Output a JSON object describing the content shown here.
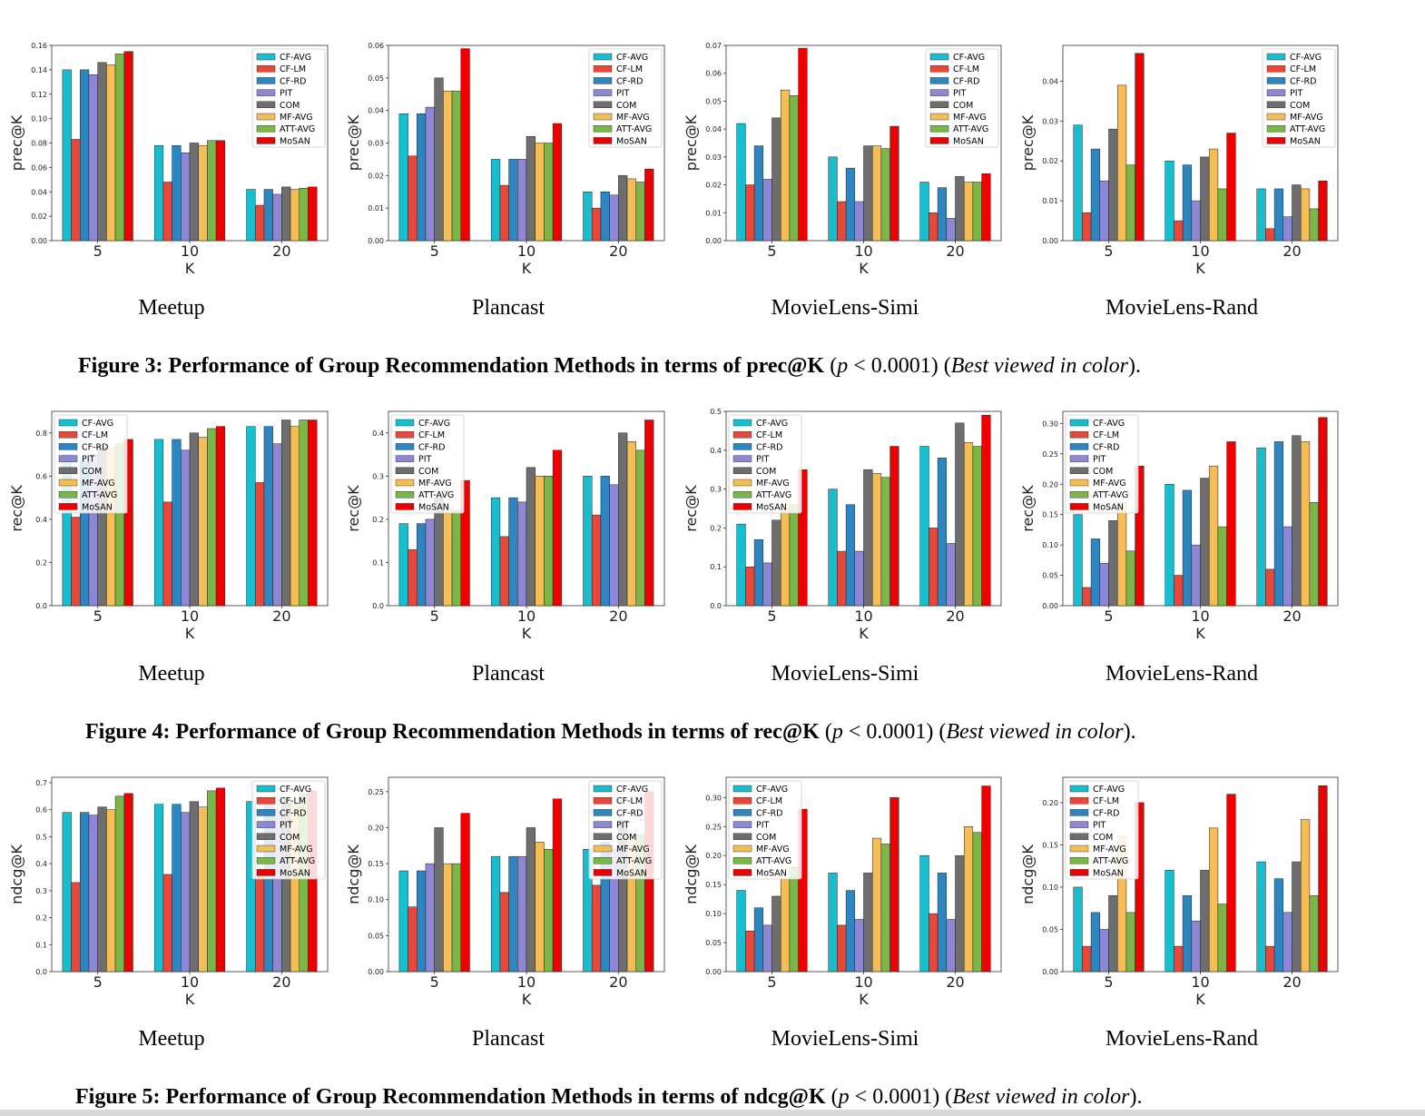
{
  "methods": [
    "CF-AVG",
    "CF-LM",
    "CF-RD",
    "PIT",
    "COM",
    "MF-AVG",
    "ATT-AVG",
    "MoSAN"
  ],
  "colors": [
    "#17becf",
    "#e8483a",
    "#2e86c1",
    "#8e87d6",
    "#6e6e6e",
    "#f5bd55",
    "#7ab648",
    "#ee0000"
  ],
  "figures": [
    {
      "caption": {
        "pre": "Figure 3: Performance of Group Recommendation Methods in terms of prec@K",
        "p_open": " (",
        "p": "p",
        "p_rest": " < 0.0001) (",
        "best": "Best viewed in color",
        "close": ")."
      },
      "panels": [
        {
          "subtitle": "Meetup",
          "chart_data": {
            "type": "bar",
            "title": "Meetup",
            "xlabel": "K",
            "ylabel": "prec@K",
            "categories": [
              "5",
              "10",
              "20"
            ],
            "ylim": [
              0,
              0.16
            ],
            "yticks": [
              0.0,
              0.02,
              0.04,
              0.06,
              0.08,
              0.1,
              0.12,
              0.14,
              0.16
            ],
            "ytick_labels": [
              "0.00",
              "0.02",
              "0.04",
              "0.06",
              "0.08",
              "0.10",
              "0.12",
              "0.14",
              "0.16"
            ],
            "legend": "top-right",
            "values": [
              [
                0.14,
                0.083,
                0.14,
                0.136,
                0.146,
                0.144,
                0.153,
                0.155
              ],
              [
                0.078,
                0.048,
                0.078,
                0.072,
                0.08,
                0.078,
                0.082,
                0.082
              ],
              [
                0.042,
                0.029,
                0.042,
                0.038,
                0.044,
                0.042,
                0.043,
                0.044
              ]
            ]
          }
        },
        {
          "subtitle": "Plancast",
          "chart_data": {
            "type": "bar",
            "title": "Plancast",
            "xlabel": "K",
            "ylabel": "prec@K",
            "categories": [
              "5",
              "10",
              "20"
            ],
            "ylim": [
              0,
              0.06
            ],
            "yticks": [
              0.0,
              0.01,
              0.02,
              0.03,
              0.04,
              0.05,
              0.06
            ],
            "ytick_labels": [
              "0.00",
              "0.01",
              "0.02",
              "0.03",
              "0.04",
              "0.05",
              "0.06"
            ],
            "legend": "top-right",
            "values": [
              [
                0.039,
                0.026,
                0.039,
                0.041,
                0.05,
                0.046,
                0.046,
                0.059
              ],
              [
                0.025,
                0.017,
                0.025,
                0.025,
                0.032,
                0.03,
                0.03,
                0.036
              ],
              [
                0.015,
                0.01,
                0.015,
                0.014,
                0.02,
                0.019,
                0.018,
                0.022
              ]
            ]
          }
        },
        {
          "subtitle": "MovieLens-Simi",
          "chart_data": {
            "type": "bar",
            "title": "MovieLens-Simi",
            "xlabel": "K",
            "ylabel": "prec@K",
            "categories": [
              "5",
              "10",
              "20"
            ],
            "ylim": [
              0,
              0.07
            ],
            "yticks": [
              0.0,
              0.01,
              0.02,
              0.03,
              0.04,
              0.05,
              0.06,
              0.07
            ],
            "ytick_labels": [
              "0.00",
              "0.01",
              "0.02",
              "0.03",
              "0.04",
              "0.05",
              "0.06",
              "0.07"
            ],
            "legend": "top-right",
            "values": [
              [
                0.042,
                0.02,
                0.034,
                0.022,
                0.044,
                0.054,
                0.052,
                0.069
              ],
              [
                0.03,
                0.014,
                0.026,
                0.014,
                0.034,
                0.034,
                0.033,
                0.041
              ],
              [
                0.021,
                0.01,
                0.019,
                0.008,
                0.023,
                0.021,
                0.021,
                0.024
              ]
            ]
          }
        },
        {
          "subtitle": "MovieLens-Rand",
          "chart_data": {
            "type": "bar",
            "title": "MovieLens-Rand",
            "xlabel": "K",
            "ylabel": "prec@K",
            "categories": [
              "5",
              "10",
              "20"
            ],
            "ylim": [
              0,
              0.049
            ],
            "yticks": [
              0.0,
              0.01,
              0.02,
              0.03,
              0.04
            ],
            "ytick_labels": [
              "0.00",
              "0.01",
              "0.02",
              "0.03",
              "0.04"
            ],
            "legend": "top-right",
            "values": [
              [
                0.029,
                0.007,
                0.023,
                0.015,
                0.028,
                0.039,
                0.019,
                0.047
              ],
              [
                0.02,
                0.005,
                0.019,
                0.01,
                0.021,
                0.023,
                0.013,
                0.027
              ],
              [
                0.013,
                0.003,
                0.013,
                0.006,
                0.014,
                0.013,
                0.008,
                0.015
              ]
            ]
          }
        }
      ]
    },
    {
      "caption": {
        "pre": "Figure 4: Performance of Group Recommendation Methods in terms of rec@K",
        "p_open": " (",
        "p": "p",
        "p_rest": " < 0.0001) (",
        "best": "Best viewed in color",
        "close": ")."
      },
      "panels": [
        {
          "subtitle": "Meetup",
          "chart_data": {
            "type": "bar",
            "title": "Meetup",
            "xlabel": "K",
            "ylabel": "rec@K",
            "categories": [
              "5",
              "10",
              "20"
            ],
            "ylim": [
              0,
              0.9
            ],
            "yticks": [
              0.0,
              0.2,
              0.4,
              0.6,
              0.8
            ],
            "ytick_labels": [
              "0.0",
              "0.2",
              "0.4",
              "0.6",
              "0.8"
            ],
            "legend": "top-left",
            "values": [
              [
                0.7,
                0.41,
                0.67,
                0.7,
                0.74,
                0.73,
                0.75,
                0.77
              ],
              [
                0.77,
                0.48,
                0.77,
                0.72,
                0.8,
                0.78,
                0.82,
                0.83
              ],
              [
                0.83,
                0.57,
                0.83,
                0.75,
                0.86,
                0.83,
                0.86,
                0.86
              ]
            ]
          }
        },
        {
          "subtitle": "Plancast",
          "chart_data": {
            "type": "bar",
            "title": "Plancast",
            "xlabel": "K",
            "ylabel": "rec@K",
            "categories": [
              "5",
              "10",
              "20"
            ],
            "ylim": [
              0,
              0.45
            ],
            "yticks": [
              0.0,
              0.1,
              0.2,
              0.3,
              0.4
            ],
            "ytick_labels": [
              "0.0",
              "0.1",
              "0.2",
              "0.3",
              "0.4"
            ],
            "legend": "top-left",
            "values": [
              [
                0.19,
                0.13,
                0.19,
                0.2,
                0.25,
                0.23,
                0.22,
                0.29
              ],
              [
                0.25,
                0.16,
                0.25,
                0.24,
                0.32,
                0.3,
                0.3,
                0.36
              ],
              [
                0.3,
                0.21,
                0.3,
                0.28,
                0.4,
                0.38,
                0.36,
                0.43
              ]
            ]
          }
        },
        {
          "subtitle": "MovieLens-Simi",
          "chart_data": {
            "type": "bar",
            "title": "MovieLens-Simi",
            "xlabel": "K",
            "ylabel": "rec@K",
            "categories": [
              "5",
              "10",
              "20"
            ],
            "ylim": [
              0,
              0.5
            ],
            "yticks": [
              0.0,
              0.1,
              0.2,
              0.3,
              0.4,
              0.5
            ],
            "ytick_labels": [
              "0.0",
              "0.1",
              "0.2",
              "0.3",
              "0.4",
              "0.5"
            ],
            "legend": "top-left",
            "values": [
              [
                0.21,
                0.1,
                0.17,
                0.11,
                0.22,
                0.25,
                0.26,
                0.35
              ],
              [
                0.3,
                0.14,
                0.26,
                0.14,
                0.35,
                0.34,
                0.33,
                0.41
              ],
              [
                0.41,
                0.2,
                0.38,
                0.16,
                0.47,
                0.42,
                0.41,
                0.49
              ]
            ]
          }
        },
        {
          "subtitle": "MovieLens-Rand",
          "chart_data": {
            "type": "bar",
            "title": "MovieLens-Rand",
            "xlabel": "K",
            "ylabel": "rec@K",
            "categories": [
              "5",
              "10",
              "20"
            ],
            "ylim": [
              0,
              0.32
            ],
            "yticks": [
              0.0,
              0.05,
              0.1,
              0.15,
              0.2,
              0.25,
              0.3
            ],
            "ytick_labels": [
              "0.00",
              "0.05",
              "0.10",
              "0.15",
              "0.20",
              "0.25",
              "0.30"
            ],
            "legend": "top-left",
            "values": [
              [
                0.15,
                0.03,
                0.11,
                0.07,
                0.14,
                0.17,
                0.09,
                0.23
              ],
              [
                0.2,
                0.05,
                0.19,
                0.1,
                0.21,
                0.23,
                0.13,
                0.27
              ],
              [
                0.26,
                0.06,
                0.27,
                0.13,
                0.28,
                0.27,
                0.17,
                0.31
              ]
            ]
          }
        }
      ]
    },
    {
      "caption": {
        "pre": "Figure 5: Performance of Group Recommendation Methods in terms of ndcg@K",
        "p_open": " (",
        "p": "p",
        "p_rest": " < 0.0001) (",
        "best": "Best viewed in color",
        "close": ")."
      },
      "panels": [
        {
          "subtitle": "Meetup",
          "chart_data": {
            "type": "bar",
            "title": "Meetup",
            "xlabel": "K",
            "ylabel": "ndcg@K",
            "categories": [
              "5",
              "10",
              "20"
            ],
            "ylim": [
              0,
              0.72
            ],
            "yticks": [
              0.0,
              0.1,
              0.2,
              0.3,
              0.4,
              0.5,
              0.6,
              0.7
            ],
            "ytick_labels": [
              "0.0",
              "0.1",
              "0.2",
              "0.3",
              "0.4",
              "0.5",
              "0.6",
              "0.7"
            ],
            "legend": "top-right",
            "values": [
              [
                0.59,
                0.33,
                0.59,
                0.58,
                0.61,
                0.6,
                0.65,
                0.66
              ],
              [
                0.62,
                0.36,
                0.62,
                0.59,
                0.63,
                0.61,
                0.67,
                0.68
              ],
              [
                0.63,
                0.38,
                0.63,
                0.6,
                0.64,
                0.62,
                0.66,
                0.67
              ]
            ]
          }
        },
        {
          "subtitle": "Plancast",
          "chart_data": {
            "type": "bar",
            "title": "Plancast",
            "xlabel": "K",
            "ylabel": "ndcg@K",
            "categories": [
              "5",
              "10",
              "20"
            ],
            "ylim": [
              0,
              0.27
            ],
            "yticks": [
              0.0,
              0.05,
              0.1,
              0.15,
              0.2,
              0.25
            ],
            "ytick_labels": [
              "0.00",
              "0.05",
              "0.10",
              "0.15",
              "0.20",
              "0.25"
            ],
            "legend": "top-right",
            "values": [
              [
                0.14,
                0.09,
                0.14,
                0.15,
                0.2,
                0.15,
                0.15,
                0.22
              ],
              [
                0.16,
                0.11,
                0.16,
                0.16,
                0.2,
                0.18,
                0.17,
                0.24
              ],
              [
                0.17,
                0.12,
                0.18,
                0.17,
                0.21,
                0.19,
                0.19,
                0.25
              ]
            ]
          }
        },
        {
          "subtitle": "MovieLens-Simi",
          "chart_data": {
            "type": "bar",
            "title": "MovieLens-Simi",
            "xlabel": "K",
            "ylabel": "ndcg@K",
            "categories": [
              "5",
              "10",
              "20"
            ],
            "ylim": [
              0,
              0.335
            ],
            "yticks": [
              0.0,
              0.05,
              0.1,
              0.15,
              0.2,
              0.25,
              0.3
            ],
            "ytick_labels": [
              "0.00",
              "0.05",
              "0.10",
              "0.15",
              "0.20",
              "0.25",
              "0.30"
            ],
            "legend": "top-left",
            "values": [
              [
                0.14,
                0.07,
                0.11,
                0.08,
                0.13,
                0.16,
                0.18,
                0.28
              ],
              [
                0.17,
                0.08,
                0.14,
                0.09,
                0.17,
                0.23,
                0.22,
                0.3
              ],
              [
                0.2,
                0.1,
                0.17,
                0.09,
                0.2,
                0.25,
                0.24,
                0.32
              ]
            ]
          }
        },
        {
          "subtitle": "MovieLens-Rand",
          "chart_data": {
            "type": "bar",
            "title": "MovieLens-Rand",
            "xlabel": "K",
            "ylabel": "ndcg@K",
            "categories": [
              "5",
              "10",
              "20"
            ],
            "ylim": [
              0,
              0.23
            ],
            "yticks": [
              0.0,
              0.05,
              0.1,
              0.15,
              0.2
            ],
            "ytick_labels": [
              "0.00",
              "0.05",
              "0.10",
              "0.15",
              "0.20"
            ],
            "legend": "top-left",
            "values": [
              [
                0.1,
                0.03,
                0.07,
                0.05,
                0.09,
                0.16,
                0.07,
                0.2
              ],
              [
                0.12,
                0.03,
                0.09,
                0.06,
                0.12,
                0.17,
                0.08,
                0.21
              ],
              [
                0.13,
                0.03,
                0.11,
                0.07,
                0.13,
                0.18,
                0.09,
                0.22
              ]
            ]
          }
        }
      ]
    }
  ]
}
